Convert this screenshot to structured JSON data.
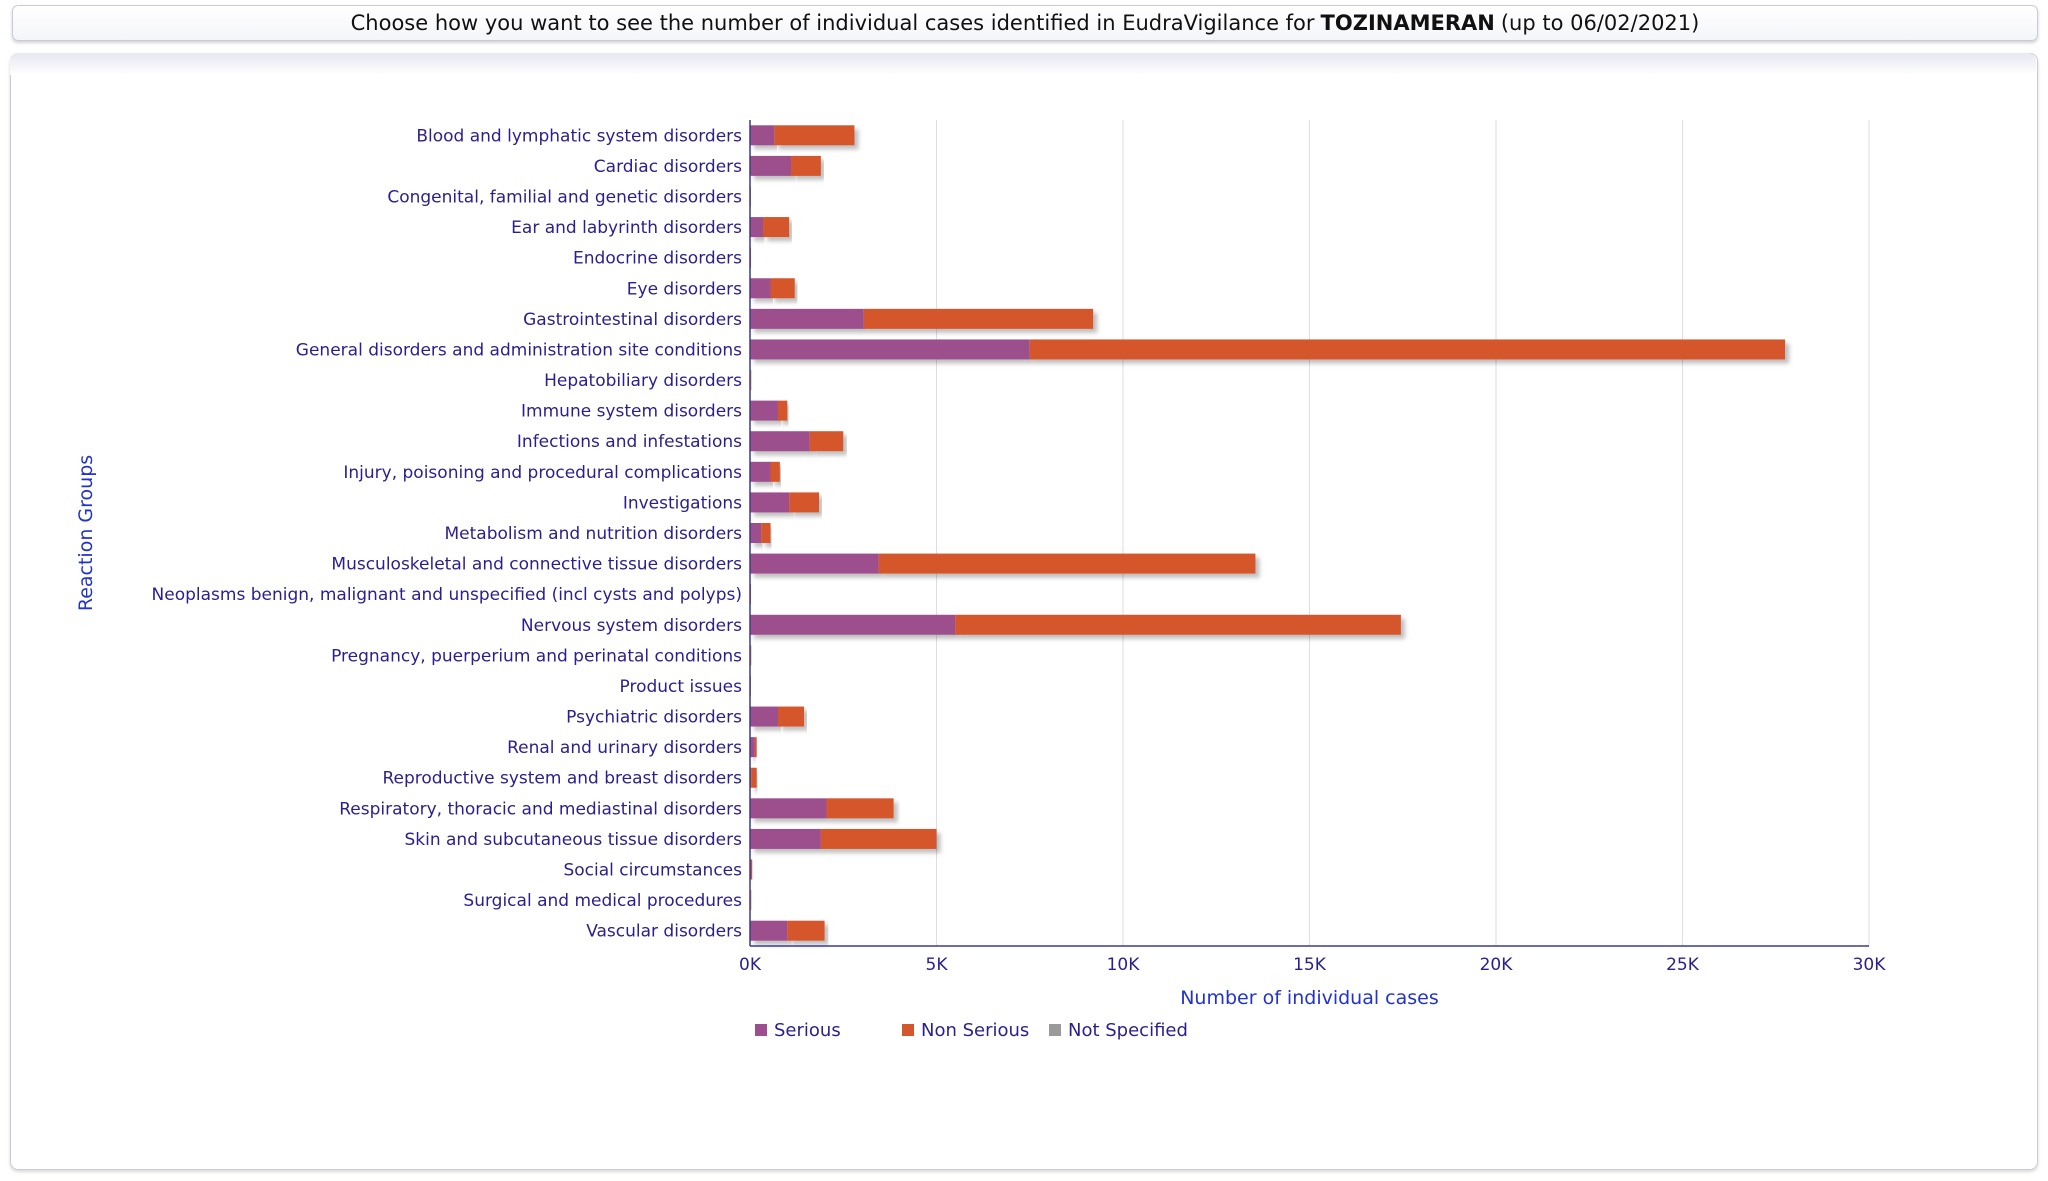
{
  "header": {
    "prefix": "Choose how you want to see the number of individual cases identified in EudraVigilance for",
    "drug": "TOZINAMERAN",
    "suffix": "(up to 06/02/2021)"
  },
  "colors": {
    "serious": "#9c4f8c",
    "non_serious": "#d4562c",
    "not_specified": "#9a9a9a",
    "axis_text": "#2a1f8c",
    "axis_title": "#2233cc",
    "grid": "#dddde6"
  },
  "chart_data": {
    "type": "bar",
    "orientation": "horizontal",
    "stacked": true,
    "xlabel": "Number of individual cases",
    "ylabel": "Reaction Groups",
    "xlim": [
      0,
      30000
    ],
    "xticks": [
      "0K",
      "5K",
      "10K",
      "15K",
      "20K",
      "25K",
      "30K"
    ],
    "grid": true,
    "legend_position": "bottom",
    "categories": [
      "Blood and lymphatic system disorders",
      "Cardiac disorders",
      "Congenital, familial and genetic disorders",
      "Ear and labyrinth disorders",
      "Endocrine disorders",
      "Eye disorders",
      "Gastrointestinal disorders",
      "General disorders and administration site conditions",
      "Hepatobiliary disorders",
      "Immune system disorders",
      "Infections and infestations",
      "Injury, poisoning and procedural complications",
      "Investigations",
      "Metabolism and nutrition disorders",
      "Musculoskeletal and connective tissue disorders",
      "Neoplasms benign, malignant and unspecified (incl cysts and polyps)",
      "Nervous system disorders",
      "Pregnancy, puerperium and perinatal conditions",
      "Product issues",
      "Psychiatric disorders",
      "Renal and urinary disorders",
      "Reproductive system and breast disorders",
      "Respiratory, thoracic and mediastinal disorders",
      "Skin and subcutaneous tissue disorders",
      "Social circumstances",
      "Surgical and medical procedures",
      "Vascular disorders"
    ],
    "series": [
      {
        "name": "Serious",
        "color": "#9c4f8c",
        "values": [
          650,
          1100,
          10,
          350,
          15,
          550,
          3050,
          7500,
          20,
          750,
          1600,
          550,
          1050,
          300,
          3450,
          15,
          5500,
          20,
          10,
          750,
          130,
          30,
          2050,
          1900,
          40,
          20,
          1000
        ]
      },
      {
        "name": "Non Serious",
        "color": "#d4562c",
        "values": [
          2150,
          800,
          5,
          700,
          5,
          650,
          6150,
          20250,
          5,
          250,
          900,
          250,
          800,
          250,
          10100,
          5,
          11950,
          5,
          5,
          700,
          50,
          150,
          1800,
          3100,
          20,
          10,
          1000
        ]
      },
      {
        "name": "Not Specified",
        "color": "#9a9a9a",
        "values": [
          0,
          0,
          0,
          0,
          0,
          0,
          0,
          0,
          0,
          0,
          0,
          0,
          0,
          0,
          0,
          0,
          0,
          0,
          0,
          0,
          0,
          0,
          0,
          0,
          0,
          0,
          0
        ]
      }
    ]
  }
}
